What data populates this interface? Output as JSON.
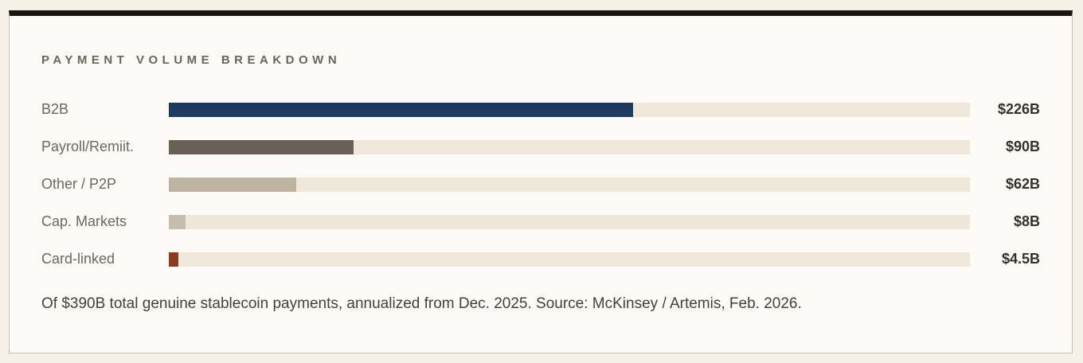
{
  "page": {
    "background_color": "#f6f0e6"
  },
  "card": {
    "background_color": "#fdfbf7",
    "border_color": "#c8bfae",
    "top_bar_color": "#1a1611"
  },
  "title": "PAYMENT VOLUME BREAKDOWN",
  "footnote": "Of $390B total genuine stablecoin payments, annualized from Dec. 2025. Source: McKinsey / Artemis, Feb. 2026.",
  "chart_data": {
    "type": "bar",
    "orientation": "horizontal",
    "title": "PAYMENT VOLUME BREAKDOWN",
    "categories": [
      "B2B",
      "Payroll/Remiit.",
      "Other / P2P",
      "Cap. Markets",
      "Card-linked"
    ],
    "values": [
      226,
      90,
      62,
      8,
      4.5
    ],
    "value_labels": [
      "$226B",
      "$90B",
      "$62B",
      "$8B",
      "$4.5B"
    ],
    "total": 390,
    "xlim": [
      0,
      390
    ],
    "unit": "USD billions, annualized",
    "bar_colors": [
      "#1e3a5e",
      "#6a6156",
      "#beb3a1",
      "#c6bdae",
      "#8d3a20"
    ],
    "track_color": "#efe8da",
    "grid": false,
    "legend": false,
    "annotations": [
      "Of $390B total genuine stablecoin payments, annualized from Dec. 2025. Source: McKinsey / Artemis, Feb. 2026."
    ]
  }
}
